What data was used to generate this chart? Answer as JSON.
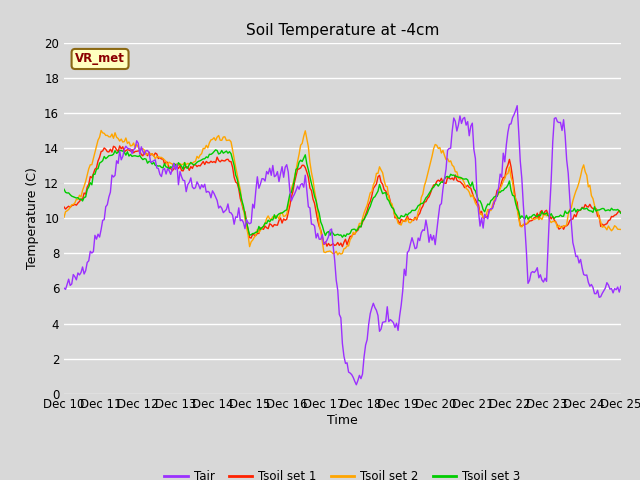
{
  "title": "Soil Temperature at -4cm",
  "xlabel": "Time",
  "ylabel": "Temperature (C)",
  "ylim": [
    0,
    20
  ],
  "annotation_text": "VR_met",
  "annotation_color": "#8B0000",
  "annotation_bg": "#FFFFC0",
  "bg_color": "#D8D8D8",
  "plot_bg": "#D8D8D8",
  "legend_bg": "#FFFFFF",
  "grid_color": "white",
  "colors": {
    "Tair": "#9B30FF",
    "Tsoil_set1": "#FF2200",
    "Tsoil_set2": "#FFA500",
    "Tsoil_set3": "#00CC00"
  },
  "legend_labels": [
    "Tair",
    "Tsoil set 1",
    "Tsoil set 2",
    "Tsoil set 3"
  ],
  "xtick_labels": [
    "Dec 10",
    "Dec 11",
    "Dec 12",
    "Dec 13",
    "Dec 14",
    "Dec 15",
    "Dec 16",
    "Dec 17",
    "Dec 18",
    "Dec 19",
    "Dec 20",
    "Dec 21",
    "Dec 22",
    "Dec 23",
    "Dec 24",
    "Dec 25"
  ],
  "n_points": 361
}
